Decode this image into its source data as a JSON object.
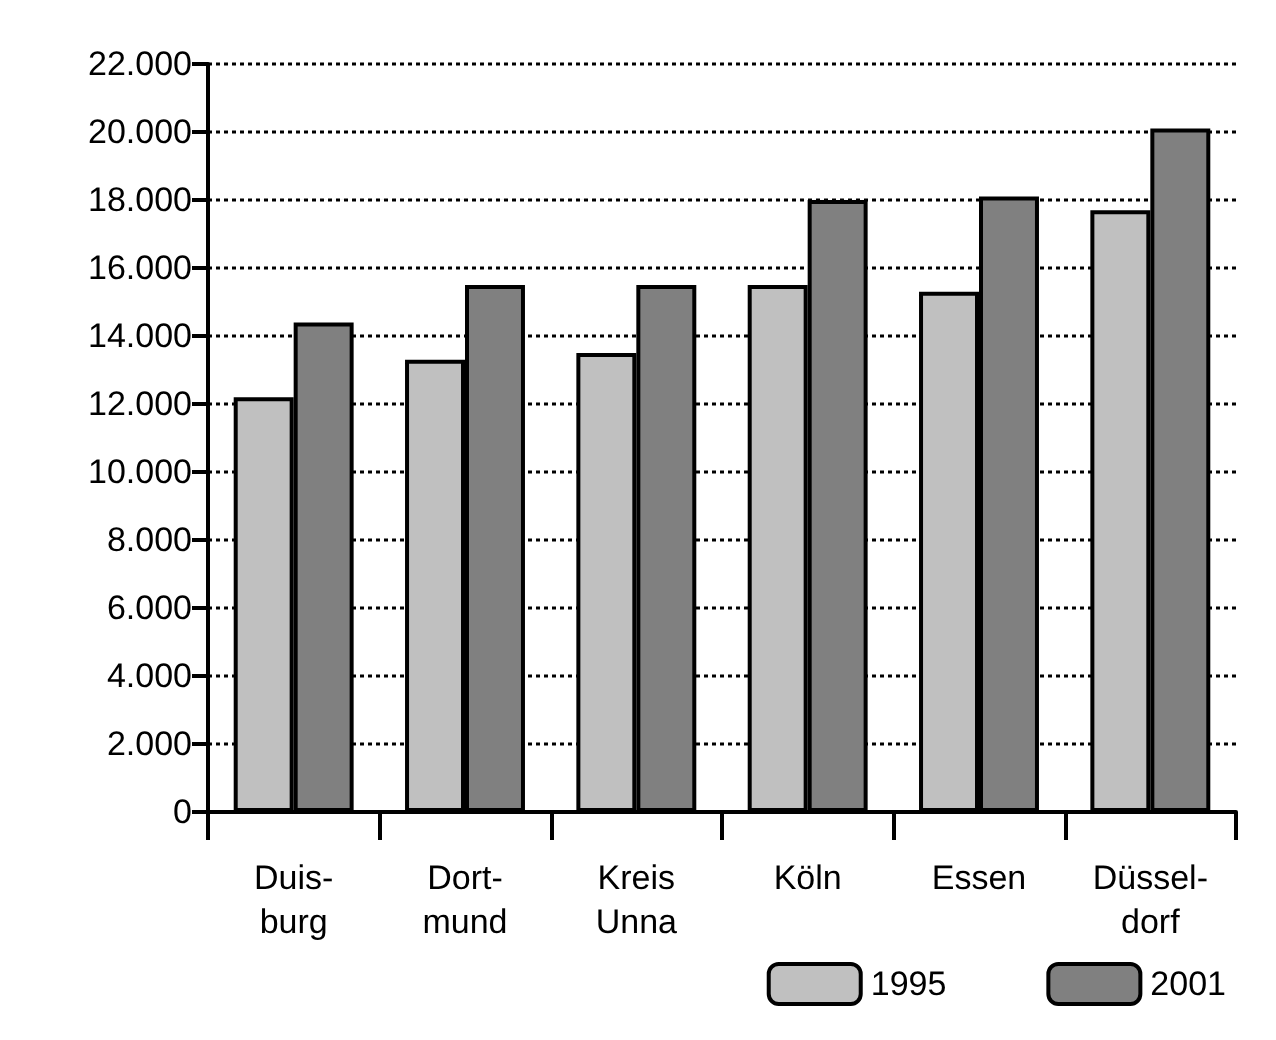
{
  "chart_data": {
    "type": "bar",
    "categories": [
      "Duis-\nburg",
      "Dort-\nmund",
      "Kreis\nUnna",
      "Köln",
      "Essen",
      "Düssel-\ndorf"
    ],
    "series": [
      {
        "name": "1995",
        "color": "#c0c0c0",
        "values": [
          12200,
          13300,
          13500,
          15500,
          15300,
          17700
        ]
      },
      {
        "name": "2001",
        "color": "#808080",
        "values": [
          14400,
          15500,
          15500,
          18000,
          18100,
          20100
        ]
      }
    ],
    "ylim": [
      0,
      22000
    ],
    "yticks": [
      {
        "value": 0,
        "label": "0"
      },
      {
        "value": 2000,
        "label": "2.000"
      },
      {
        "value": 4000,
        "label": "4.000"
      },
      {
        "value": 6000,
        "label": "6.000"
      },
      {
        "value": 8000,
        "label": "8.000"
      },
      {
        "value": 10000,
        "label": "10.000"
      },
      {
        "value": 12000,
        "label": "12.000"
      },
      {
        "value": 14000,
        "label": "14.000"
      },
      {
        "value": 16000,
        "label": "16.000"
      },
      {
        "value": 18000,
        "label": "18.000"
      },
      {
        "value": 20000,
        "label": "20.000"
      },
      {
        "value": 22000,
        "label": "22.000"
      }
    ],
    "grid": "y",
    "legend": "bottom right"
  }
}
